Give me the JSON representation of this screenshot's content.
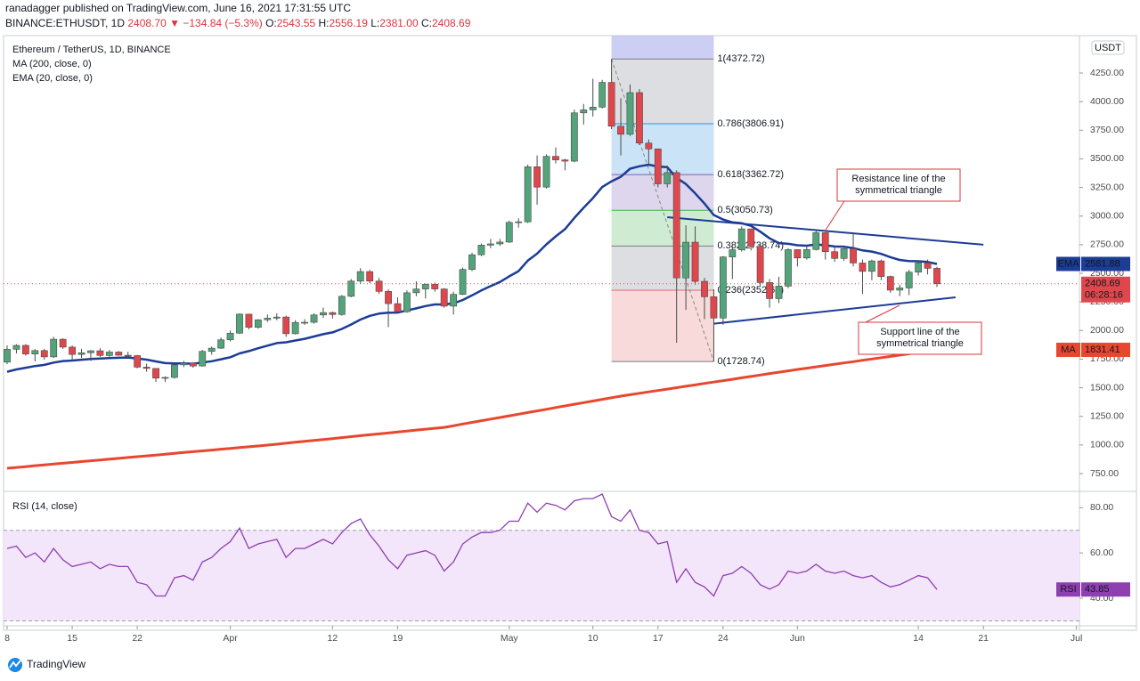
{
  "header": {
    "published": "ranadagger published on TradingView.com, June 16, 2021 17:31:55 UTC",
    "symbol": "BINANCE:ETHUSDT, 1D",
    "price": "2408.70",
    "arrow": "▼",
    "change": "−134.84 (−5.3%)",
    "o_key": "O:",
    "o": "2543.55",
    "h_key": "H:",
    "h": "2556.19",
    "l_key": "L:",
    "l": "2381.00",
    "c_key": "C:",
    "c": "2408.69"
  },
  "footer": {
    "brand": "TradingView"
  },
  "chart_data": [
    {
      "type": "candlestick",
      "title": "Ethereum / TetherUS, 1D, BINANCE",
      "currency": "USDT",
      "countdown": "06:28:16",
      "up_color": "#53a47a",
      "down_color": "#e0474c",
      "wick_color": "#4a4a4a",
      "grid": false,
      "categories": [
        "2021-03-08",
        "2021-03-09",
        "2021-03-10",
        "2021-03-11",
        "2021-03-12",
        "2021-03-13",
        "2021-03-14",
        "2021-03-15",
        "2021-03-16",
        "2021-03-17",
        "2021-03-18",
        "2021-03-19",
        "2021-03-20",
        "2021-03-21",
        "2021-03-22",
        "2021-03-23",
        "2021-03-24",
        "2021-03-25",
        "2021-03-26",
        "2021-03-27",
        "2021-03-28",
        "2021-03-29",
        "2021-03-30",
        "2021-03-31",
        "2021-04-01",
        "2021-04-02",
        "2021-04-03",
        "2021-04-04",
        "2021-04-05",
        "2021-04-06",
        "2021-04-07",
        "2021-04-08",
        "2021-04-09",
        "2021-04-10",
        "2021-04-11",
        "2021-04-12",
        "2021-04-13",
        "2021-04-14",
        "2021-04-15",
        "2021-04-16",
        "2021-04-17",
        "2021-04-18",
        "2021-04-19",
        "2021-04-20",
        "2021-04-21",
        "2021-04-22",
        "2021-04-23",
        "2021-04-24",
        "2021-04-25",
        "2021-04-26",
        "2021-04-27",
        "2021-04-28",
        "2021-04-29",
        "2021-04-30",
        "2021-05-01",
        "2021-05-02",
        "2021-05-03",
        "2021-05-04",
        "2021-05-05",
        "2021-05-06",
        "2021-05-07",
        "2021-05-08",
        "2021-05-09",
        "2021-05-10",
        "2021-05-11",
        "2021-05-12",
        "2021-05-13",
        "2021-05-14",
        "2021-05-15",
        "2021-05-16",
        "2021-05-17",
        "2021-05-18",
        "2021-05-19",
        "2021-05-20",
        "2021-05-21",
        "2021-05-22",
        "2021-05-23",
        "2021-05-24",
        "2021-05-25",
        "2021-05-26",
        "2021-05-27",
        "2021-05-28",
        "2021-05-29",
        "2021-05-30",
        "2021-05-31",
        "2021-06-01",
        "2021-06-02",
        "2021-06-03",
        "2021-06-04",
        "2021-06-05",
        "2021-06-06",
        "2021-06-07",
        "2021-06-08",
        "2021-06-09",
        "2021-06-10",
        "2021-06-11",
        "2021-06-12",
        "2021-06-13",
        "2021-06-14",
        "2021-06-15",
        "2021-06-16"
      ],
      "open": [
        1724,
        1836,
        1870,
        1795,
        1825,
        1770,
        1924,
        1855,
        1791,
        1806,
        1823,
        1782,
        1812,
        1784,
        1781,
        1680,
        1669,
        1584,
        1590,
        1700,
        1715,
        1690,
        1818,
        1846,
        1919,
        1977,
        2143,
        2028,
        2094,
        2108,
        2118,
        1972,
        2071,
        2072,
        2136,
        2157,
        2140,
        2299,
        2432,
        2515,
        2432,
        2342,
        2235,
        2164,
        2330,
        2363,
        2404,
        2363,
        2213,
        2316,
        2534,
        2662,
        2746,
        2757,
        2773,
        2945,
        2950,
        3431,
        3253,
        3522,
        3491,
        3480,
        3902,
        3928,
        3952,
        4168,
        3785,
        3715,
        4079,
        3638,
        3587,
        3282,
        3380,
        2460,
        2772,
        2430,
        2295,
        2109,
        2643,
        2706,
        2888,
        2736,
        2419,
        2279,
        2388,
        2707,
        2634,
        2708,
        2855,
        2689,
        2630,
        2715,
        2590,
        2517,
        2608,
        2472,
        2353,
        2372,
        2510,
        2590,
        2543.55
      ],
      "high": [
        1870,
        1880,
        1882,
        1837,
        1840,
        1945,
        1932,
        1870,
        1840,
        1830,
        1845,
        1830,
        1820,
        1815,
        1786,
        1710,
        1670,
        1600,
        1710,
        1735,
        1720,
        1830,
        1860,
        1940,
        2000,
        2150,
        2145,
        2100,
        2140,
        2150,
        2130,
        2090,
        2100,
        2150,
        2200,
        2165,
        2310,
        2450,
        2545,
        2530,
        2460,
        2360,
        2290,
        2350,
        2430,
        2410,
        2420,
        2370,
        2340,
        2550,
        2680,
        2760,
        2800,
        2800,
        2960,
        2980,
        3450,
        3530,
        3540,
        3600,
        3500,
        3930,
        3980,
        4200,
        4190,
        4372.72,
        4030,
        4150,
        4110,
        3670,
        3590,
        3440,
        3400,
        2920,
        2910,
        2460,
        2360,
        2650,
        2740,
        2910,
        2890,
        2760,
        2450,
        2470,
        2720,
        2710,
        2740,
        2880,
        2860,
        2740,
        2740,
        2850,
        2620,
        2620,
        2620,
        2480,
        2400,
        2530,
        2610,
        2620,
        2556.19
      ],
      "low": [
        1707,
        1800,
        1780,
        1730,
        1745,
        1760,
        1840,
        1735,
        1760,
        1735,
        1770,
        1770,
        1780,
        1765,
        1670,
        1640,
        1550,
        1550,
        1580,
        1680,
        1675,
        1685,
        1790,
        1840,
        1905,
        1970,
        2010,
        2015,
        2075,
        2090,
        1945,
        1965,
        2050,
        2060,
        2110,
        2105,
        2130,
        2290,
        2410,
        2415,
        2320,
        2030,
        2160,
        2155,
        2300,
        2280,
        2340,
        2200,
        2140,
        2310,
        2520,
        2650,
        2720,
        2740,
        2765,
        2900,
        2940,
        3100,
        3240,
        3460,
        3400,
        3470,
        3800,
        3870,
        3940,
        3760,
        3530,
        3700,
        3620,
        3450,
        3250,
        3250,
        1893,
        2180,
        2400,
        2100,
        1728.74,
        2050,
        2450,
        2690,
        2700,
        2390,
        2200,
        2240,
        2370,
        2560,
        2620,
        2700,
        2620,
        2600,
        2610,
        2560,
        2320,
        2440,
        2440,
        2330,
        2300,
        2310,
        2480,
        2490,
        2381
      ],
      "close": [
        1836,
        1870,
        1795,
        1825,
        1770,
        1924,
        1855,
        1791,
        1806,
        1823,
        1782,
        1812,
        1784,
        1781,
        1680,
        1669,
        1584,
        1590,
        1700,
        1715,
        1690,
        1818,
        1846,
        1919,
        1977,
        2143,
        2028,
        2094,
        2108,
        2118,
        1972,
        2071,
        2072,
        2136,
        2157,
        2140,
        2299,
        2432,
        2515,
        2432,
        2342,
        2235,
        2164,
        2330,
        2363,
        2404,
        2363,
        2213,
        2316,
        2534,
        2662,
        2746,
        2757,
        2773,
        2945,
        2950,
        3431,
        3253,
        3522,
        3491,
        3480,
        3902,
        3928,
        3952,
        4168,
        3785,
        3715,
        4079,
        3638,
        3587,
        3282,
        3380,
        2460,
        2772,
        2430,
        2295,
        2109,
        2643,
        2706,
        2888,
        2736,
        2419,
        2279,
        2388,
        2707,
        2634,
        2708,
        2855,
        2689,
        2630,
        2715,
        2590,
        2517,
        2608,
        2472,
        2353,
        2372,
        2510,
        2590,
        2543.55,
        2408.69
      ],
      "series": [
        {
          "name": "MA (200, close, 0)",
          "tag": "MA",
          "color": "#e8472f",
          "width": 3,
          "values": [
            797,
            804,
            811,
            819,
            826,
            833,
            840,
            847,
            855,
            862,
            869,
            876,
            883,
            891,
            898,
            905,
            912,
            919,
            927,
            934,
            941,
            948,
            955,
            963,
            970,
            977,
            984,
            991,
            999,
            1007,
            1015,
            1024,
            1032,
            1040,
            1048,
            1056,
            1064,
            1073,
            1081,
            1089,
            1097,
            1105,
            1114,
            1122,
            1130,
            1138,
            1146,
            1154,
            1168,
            1183,
            1197,
            1212,
            1226,
            1240,
            1255,
            1269,
            1284,
            1298,
            1312,
            1327,
            1341,
            1356,
            1370,
            1384,
            1399,
            1413,
            1427,
            1439,
            1452,
            1464,
            1476,
            1488,
            1501,
            1513,
            1525,
            1538,
            1550,
            1562,
            1574,
            1587,
            1599,
            1611,
            1624,
            1636,
            1648,
            1660,
            1671,
            1683,
            1694,
            1706,
            1717,
            1728,
            1740,
            1751,
            1763,
            1774,
            1785,
            1797,
            1808,
            1820,
            1831.41
          ]
        },
        {
          "name": "EMA (20, close, 0)",
          "tag": "EMA",
          "color": "#1c3c96",
          "width": 2.5,
          "values": [
            1640,
            1660,
            1675,
            1690,
            1700,
            1720,
            1733,
            1738,
            1745,
            1752,
            1755,
            1760,
            1762,
            1764,
            1755,
            1746,
            1730,
            1715,
            1713,
            1713,
            1710,
            1720,
            1732,
            1749,
            1767,
            1800,
            1820,
            1845,
            1868,
            1890,
            1897,
            1913,
            1928,
            1948,
            1968,
            1984,
            2014,
            2053,
            2096,
            2128,
            2148,
            2156,
            2157,
            2175,
            2194,
            2214,
            2228,
            2228,
            2237,
            2267,
            2307,
            2350,
            2388,
            2424,
            2474,
            2519,
            2611,
            2672,
            2753,
            2823,
            2886,
            2983,
            3073,
            3157,
            3254,
            3304,
            3343,
            3414,
            3435,
            3449,
            3433,
            3427,
            3333,
            3280,
            3198,
            3110,
            3010,
            2970,
            2945,
            2937,
            2915,
            2864,
            2806,
            2764,
            2758,
            2745,
            2741,
            2752,
            2745,
            2734,
            2733,
            2720,
            2700,
            2690,
            2670,
            2641,
            2617,
            2607,
            2605,
            2599,
            2581.88
          ]
        }
      ],
      "ylim": [
        610,
        4577
      ],
      "yticks": [
        {
          "value": 750,
          "label": "750.00"
        },
        {
          "value": 1000,
          "label": "1000.00"
        },
        {
          "value": 1250,
          "label": "1250.00"
        },
        {
          "value": 1500,
          "label": "1500.00"
        },
        {
          "value": 1750,
          "label": "1750.00"
        },
        {
          "value": 2000,
          "label": "2000.00"
        },
        {
          "value": 2250,
          "label": "2250.00"
        },
        {
          "value": 2500,
          "label": "2500.00"
        },
        {
          "value": 2750,
          "label": "2750.00"
        },
        {
          "value": 3000,
          "label": "3000.00"
        },
        {
          "value": 3250,
          "label": "3250.00"
        },
        {
          "value": 3500,
          "label": "3500.00"
        },
        {
          "value": 3750,
          "label": "3750.00"
        },
        {
          "value": 4000,
          "label": "4000.00"
        },
        {
          "value": 4250,
          "label": "4250.00"
        }
      ],
      "xticks": [
        {
          "value": "2021-03-08",
          "label": "8"
        },
        {
          "value": "2021-03-15",
          "label": "15"
        },
        {
          "value": "2021-03-22",
          "label": "22"
        },
        {
          "value": "2021-04-01",
          "label": "Apr"
        },
        {
          "value": "2021-04-12",
          "label": "12"
        },
        {
          "value": "2021-04-19",
          "label": "19"
        },
        {
          "value": "2021-05-01",
          "label": "May"
        },
        {
          "value": "2021-05-10",
          "label": "10"
        },
        {
          "value": "2021-05-17",
          "label": "17"
        },
        {
          "value": "2021-05-24",
          "label": "24"
        },
        {
          "value": "2021-06-01",
          "label": "Jun"
        },
        {
          "value": "2021-06-14",
          "label": "14"
        },
        {
          "value": "2021-06-21",
          "label": "21"
        },
        {
          "value": "2021-07-01",
          "label": "Jul"
        }
      ],
      "fib": {
        "x": [
          "2021-05-12",
          "2021-05-23"
        ],
        "top_color": "#b7b9ee",
        "levels": [
          {
            "price": 4372.72,
            "label": "1(4372.72)",
            "color": "#787b86"
          },
          {
            "price": 3806.91,
            "label": "0.786(3806.91)",
            "color": "#2f8fdc"
          },
          {
            "price": 3362.72,
            "label": "0.618(3362.72)",
            "color": "#7c5cb8"
          },
          {
            "price": 3050.73,
            "label": "0.5(3050.73)",
            "color": "#3fb24c"
          },
          {
            "price": 2738.74,
            "label": "0.382(2738.74)",
            "color": "#787b86"
          },
          {
            "price": 2352.63,
            "label": "0.236(2352.63)",
            "color": "#e36a6a"
          },
          {
            "price": 1728.74,
            "label": "0(1728.74)",
            "color": "#787b86"
          }
        ]
      },
      "trendlines": [
        {
          "x": [
            "2021-05-18",
            "2021-06-21"
          ],
          "y": [
            2990,
            2750
          ],
          "color": "#1c3c96"
        },
        {
          "x": [
            "2021-05-23",
            "2021-06-18"
          ],
          "y": [
            2060,
            2290
          ],
          "color": "#1c3c96"
        }
      ],
      "annotations": [
        {
          "lines": [
            "Resistance line of the",
            "symmetrical triangle"
          ],
          "color": "#d9363e"
        },
        {
          "lines": [
            "Support line of the",
            "symmetrical triangle"
          ],
          "color": "#d9363e"
        }
      ]
    },
    {
      "type": "line",
      "title": "RSI (14, close)",
      "series": [
        {
          "name": "RSI (14, close)",
          "tag": "RSI",
          "color": "#8e3fb0",
          "values": [
            62,
            63,
            58,
            60,
            56,
            62,
            57,
            54,
            55,
            56,
            53,
            55,
            54,
            54,
            47,
            46,
            41,
            41,
            49,
            50,
            48,
            56,
            58,
            62,
            65,
            71,
            62,
            64,
            65,
            66,
            58,
            62,
            62,
            64,
            66,
            64,
            69,
            73,
            75,
            68,
            63,
            57,
            53,
            59,
            60,
            61,
            59,
            52,
            56,
            64,
            67,
            69,
            69,
            70,
            74,
            74,
            82,
            78,
            82,
            81,
            79,
            83,
            84,
            84,
            86,
            76,
            74,
            79,
            70,
            69,
            64,
            65,
            47,
            53,
            47,
            45,
            41,
            50,
            51,
            54,
            51,
            46,
            44,
            46,
            52,
            51,
            52,
            55,
            52,
            51,
            52,
            50,
            49,
            50,
            47,
            45,
            46,
            48,
            50,
            49,
            43.85
          ]
        }
      ],
      "band": [
        30,
        70
      ],
      "band_color": "#f3e6fb",
      "ylim": [
        29,
        86
      ],
      "yticks": [
        {
          "value": 40,
          "label": "40.00"
        },
        {
          "value": 60,
          "label": "60.00"
        },
        {
          "value": 80,
          "label": "80.00"
        }
      ]
    }
  ]
}
